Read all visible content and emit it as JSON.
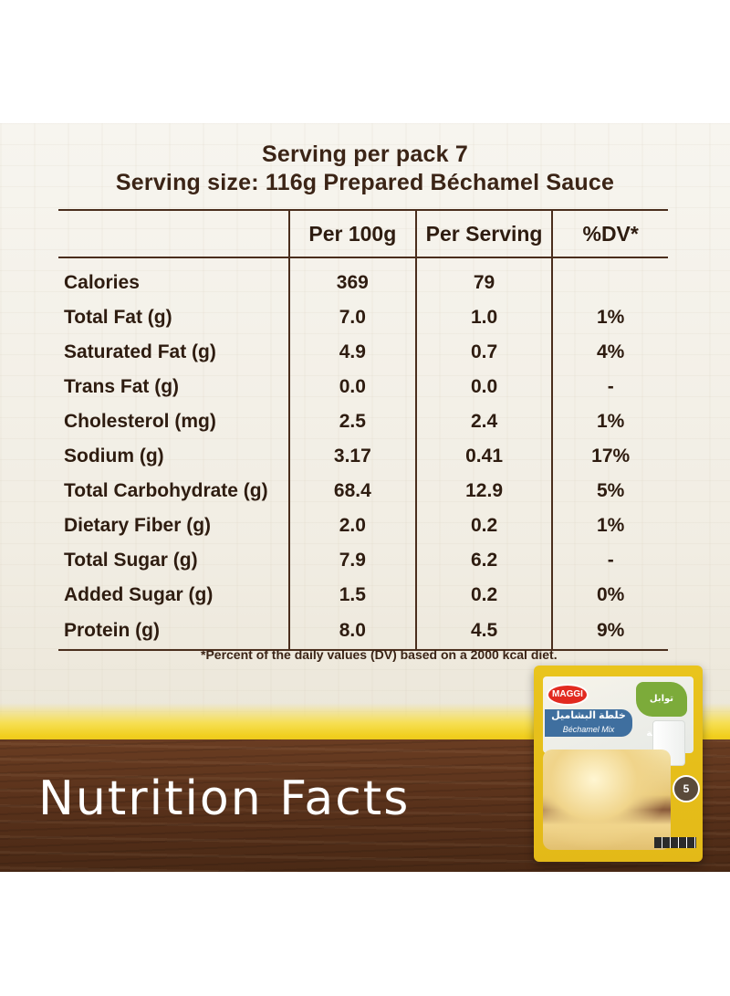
{
  "header": {
    "servings_per_pack": "Serving per pack 7",
    "serving_size": "Serving size: 116g Prepared Béchamel Sauce"
  },
  "table": {
    "columns": [
      "",
      "Per 100g",
      "Per Serving",
      "%DV*"
    ],
    "rows": [
      {
        "name": "Calories",
        "per100": "369",
        "serving": "79",
        "dv": ""
      },
      {
        "name": "Total Fat (g)",
        "per100": "7.0",
        "serving": "1.0",
        "dv": "1%"
      },
      {
        "name": "Saturated Fat (g)",
        "per100": "4.9",
        "serving": "0.7",
        "dv": "4%"
      },
      {
        "name": "Trans Fat (g)",
        "per100": "0.0",
        "serving": "0.0",
        "dv": "-"
      },
      {
        "name": "Cholesterol (mg)",
        "per100": "2.5",
        "serving": "2.4",
        "dv": "1%"
      },
      {
        "name": "Sodium (g)",
        "per100": "3.17",
        "serving": "0.41",
        "dv": "17%"
      },
      {
        "name": "Total Carbohydrate (g)",
        "per100": "68.4",
        "serving": "12.9",
        "dv": "5%"
      },
      {
        "name": "Dietary Fiber (g)",
        "per100": "2.0",
        "serving": "0.2",
        "dv": "1%"
      },
      {
        "name": "Total Sugar (g)",
        "per100": "7.9",
        "serving": "6.2",
        "dv": "-"
      },
      {
        "name": "Added Sugar (g)",
        "per100": "1.5",
        "serving": "0.2",
        "dv": "0%"
      },
      {
        "name": "Protein (g)",
        "per100": "8.0",
        "serving": "4.5",
        "dv": "9%"
      }
    ]
  },
  "footnote": "*Percent of the daily values (DV) based on a 2000 kcal diet.",
  "headline": "Nutrition Facts",
  "product": {
    "brand": "MAGGI",
    "name_ar": "خلطة البشاميل",
    "name_en": "Béchamel Mix",
    "badge_ar": "توابل طبيعية",
    "side_number": "5"
  },
  "colors": {
    "text_brown": "#2e1c10",
    "rule_brown": "#4a2e1d",
    "paint_yellow": "#f1cf1e",
    "wood": "#5a321b",
    "brand_red": "#e22a20"
  }
}
